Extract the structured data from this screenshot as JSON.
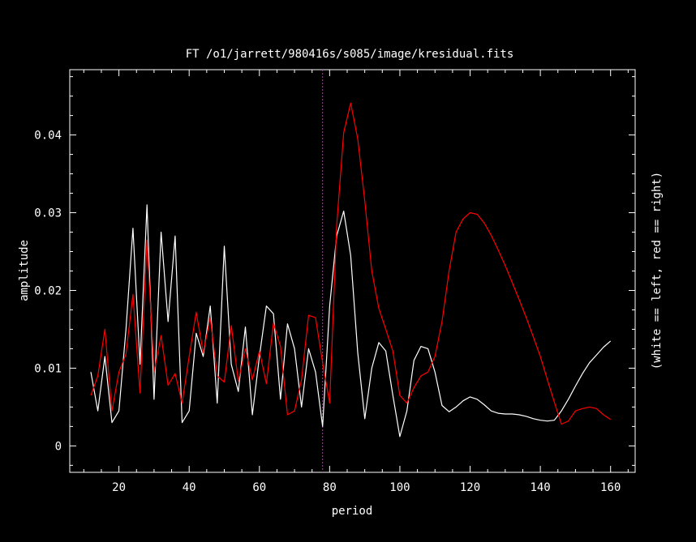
{
  "chart_data": {
    "type": "line",
    "title": "FT  /o1/jarrett/980416s/s085/image/kresidual.fits",
    "xlabel": "period",
    "ylabel": "amplitude",
    "right_label": "(white == left, red == right)",
    "xlim": [
      6,
      167
    ],
    "ylim": [
      -0.0034,
      0.0484
    ],
    "x_ticks": [
      20,
      40,
      60,
      80,
      100,
      120,
      140,
      160
    ],
    "x_tick_labels": [
      "20",
      "40",
      "60",
      "80",
      "100",
      "120",
      "140",
      "160"
    ],
    "y_ticks": [
      0,
      0.01,
      0.02,
      0.03,
      0.04
    ],
    "y_tick_labels": [
      "0",
      "0.01",
      "0.02",
      "0.03",
      "0.04"
    ],
    "grid": false,
    "marker_line": {
      "x": 78,
      "color": "#ff00ff"
    },
    "colors": {
      "background": "#000000",
      "axes": "#ffffff",
      "white_series": "#ffffff",
      "red_series": "#ff0000"
    },
    "series": [
      {
        "color": "#ffffff",
        "x": [
          12,
          14,
          16,
          18,
          20,
          22,
          24,
          26,
          28,
          30,
          32,
          34,
          36,
          38,
          40,
          42,
          44,
          46,
          48,
          50,
          52,
          54,
          56,
          58,
          60,
          62,
          64,
          66,
          68,
          70,
          72,
          74,
          76,
          78,
          80,
          82,
          84,
          86,
          88,
          90,
          92,
          94,
          96,
          98,
          100,
          102,
          104,
          106,
          108,
          110,
          112,
          114,
          116,
          118,
          120,
          122,
          124,
          126,
          128,
          130,
          132,
          134,
          136,
          138,
          140,
          142,
          144,
          146,
          148,
          150,
          152,
          154,
          156,
          158,
          160
        ],
        "y": [
          0.0095,
          0.0045,
          0.0115,
          0.003,
          0.0045,
          0.015,
          0.028,
          0.0105,
          0.031,
          0.006,
          0.0275,
          0.016,
          0.027,
          0.003,
          0.0045,
          0.0145,
          0.0115,
          0.018,
          0.0055,
          0.0257,
          0.0105,
          0.007,
          0.0153,
          0.004,
          0.0115,
          0.018,
          0.017,
          0.006,
          0.0157,
          0.0125,
          0.005,
          0.0125,
          0.0095,
          0.0025,
          0.018,
          0.027,
          0.0302,
          0.0245,
          0.012,
          0.0035,
          0.01,
          0.0133,
          0.0122,
          0.0065,
          0.0012,
          0.0045,
          0.011,
          0.0128,
          0.0125,
          0.0095,
          0.0052,
          0.0044,
          0.005,
          0.0058,
          0.0063,
          0.006,
          0.0053,
          0.0045,
          0.0042,
          0.0041,
          0.0041,
          0.004,
          0.0038,
          0.0035,
          0.0033,
          0.0032,
          0.0033,
          0.0045,
          0.006,
          0.0077,
          0.0093,
          0.0107,
          0.0117,
          0.0127,
          0.0135
        ]
      },
      {
        "color": "#ff0000",
        "x": [
          12,
          14,
          16,
          18,
          20,
          22,
          24,
          26,
          28,
          30,
          32,
          34,
          36,
          38,
          40,
          42,
          44,
          46,
          48,
          50,
          52,
          54,
          56,
          58,
          60,
          62,
          64,
          66,
          68,
          70,
          72,
          74,
          76,
          78,
          80,
          82,
          84,
          86,
          88,
          90,
          92,
          94,
          96,
          98,
          100,
          102,
          104,
          106,
          108,
          110,
          112,
          114,
          116,
          118,
          120,
          122,
          124,
          126,
          128,
          130,
          132,
          134,
          136,
          138,
          140,
          142,
          144,
          146,
          148,
          150,
          152,
          154,
          156,
          158,
          160
        ],
        "y": [
          0.0065,
          0.009,
          0.015,
          0.0045,
          0.0095,
          0.0118,
          0.0195,
          0.0068,
          0.0265,
          0.0095,
          0.0142,
          0.0078,
          0.0093,
          0.0055,
          0.0115,
          0.0172,
          0.012,
          0.0165,
          0.009,
          0.0082,
          0.0155,
          0.0083,
          0.0125,
          0.0085,
          0.0122,
          0.008,
          0.0158,
          0.0128,
          0.004,
          0.0045,
          0.0085,
          0.0168,
          0.0165,
          0.0107,
          0.0055,
          0.0283,
          0.0403,
          0.0441,
          0.0395,
          0.0315,
          0.0225,
          0.0177,
          0.015,
          0.0122,
          0.0065,
          0.0055,
          0.0075,
          0.009,
          0.0095,
          0.0115,
          0.016,
          0.0225,
          0.0275,
          0.0292,
          0.03,
          0.0298,
          0.0287,
          0.0271,
          0.0252,
          0.0232,
          0.021,
          0.0188,
          0.0165,
          0.014,
          0.0115,
          0.0085,
          0.0056,
          0.0028,
          0.0032,
          0.0045,
          0.0048,
          0.005,
          0.0048,
          0.004,
          0.0034
        ]
      }
    ]
  }
}
